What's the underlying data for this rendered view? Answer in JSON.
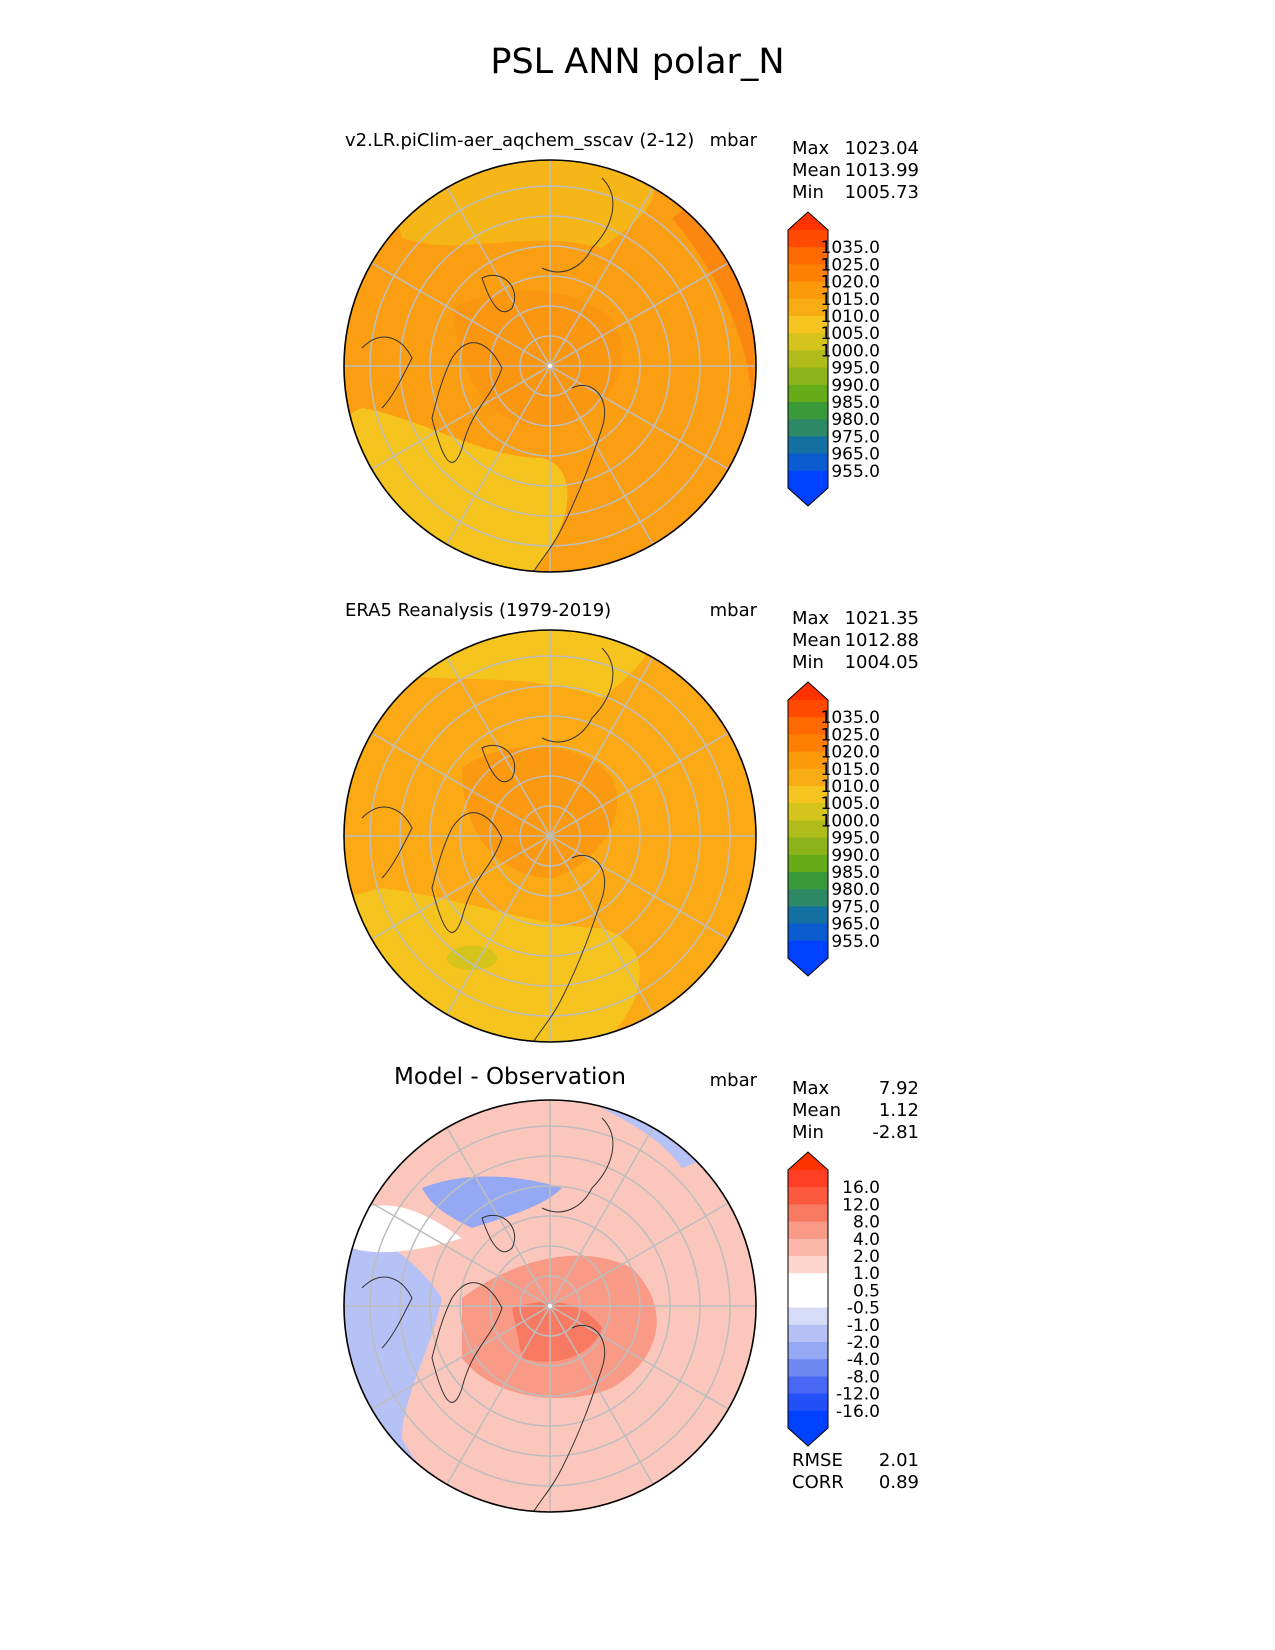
{
  "title": "PSL ANN polar_N",
  "panels": [
    {
      "title_left": "v2.LR.piClim-aer_aqchem_sscav (2-12)",
      "title_units": "mbar",
      "stats": [
        {
          "label": "Max",
          "value": "1023.04"
        },
        {
          "label": "Mean",
          "value": "1013.99"
        },
        {
          "label": "Min",
          "value": "1005.73"
        }
      ],
      "colorbar": {
        "ticks": [
          "1035.0",
          "1025.0",
          "1020.0",
          "1015.0",
          "1010.0",
          "1005.0",
          "1000.0",
          "995.0",
          "990.0",
          "985.0",
          "980.0",
          "975.0",
          "965.0",
          "955.0"
        ],
        "over_color": "#ff3300",
        "under_color": "#0040ff",
        "colors": [
          "#ff4a00",
          "#ff6a00",
          "#ff8000",
          "#fd9a0a",
          "#f8ac14",
          "#f5c41f",
          "#d4c41c",
          "#b0bc1a",
          "#8cb41a",
          "#66ac18",
          "#3a9a3a",
          "#2e8a66",
          "#1470a0",
          "#0a5ad0",
          "#0040ff"
        ]
      },
      "map": {
        "base_color": "#fb9e12"
      }
    },
    {
      "title_left": "ERA5 Reanalysis (1979-2019)",
      "title_units": "mbar",
      "stats": [
        {
          "label": "Max",
          "value": "1021.35"
        },
        {
          "label": "Mean",
          "value": "1012.88"
        },
        {
          "label": "Min",
          "value": "1004.05"
        }
      ],
      "colorbar": {
        "ticks": [
          "1035.0",
          "1025.0",
          "1020.0",
          "1015.0",
          "1010.0",
          "1005.0",
          "1000.0",
          "995.0",
          "990.0",
          "985.0",
          "980.0",
          "975.0",
          "965.0",
          "955.0"
        ],
        "over_color": "#ff3300",
        "under_color": "#0040ff",
        "colors": [
          "#ff4a00",
          "#ff6a00",
          "#ff8000",
          "#fd9a0a",
          "#f8ac14",
          "#f5c41f",
          "#d4c41c",
          "#b0bc1a",
          "#8cb41a",
          "#66ac18",
          "#3a9a3a",
          "#2e8a66",
          "#1470a0",
          "#0a5ad0",
          "#0040ff"
        ]
      },
      "map": {
        "base_color": "#fbaa16"
      }
    },
    {
      "title_center": "Model - Observation",
      "title_units": "mbar",
      "stats": [
        {
          "label": "Max",
          "value": "7.92"
        },
        {
          "label": "Mean",
          "value": "1.12"
        },
        {
          "label": "Min",
          "value": "-2.81"
        }
      ],
      "footer_stats": [
        {
          "label": "RMSE",
          "value": "2.01"
        },
        {
          "label": "CORR",
          "value": "0.89"
        }
      ],
      "colorbar": {
        "ticks": [
          "16.0",
          "12.0",
          "8.0",
          "4.0",
          "2.0",
          "1.0",
          "0.5",
          "-0.5",
          "-1.0",
          "-2.0",
          "-4.0",
          "-8.0",
          "-12.0",
          "-16.0"
        ],
        "over_color": "#ff3300",
        "under_color": "#0040ff",
        "colors": [
          "#ff3e26",
          "#fb5a3e",
          "#f97a62",
          "#f99a86",
          "#fbb8aa",
          "#fdd6ce",
          "#ffffff",
          "#ffffff",
          "#d6dcf8",
          "#b6c2f6",
          "#94a8f4",
          "#6e88f2",
          "#4868f4",
          "#2450f8",
          "#0040ff"
        ]
      },
      "map": {
        "base_color": "#fbc7bc"
      }
    }
  ]
}
